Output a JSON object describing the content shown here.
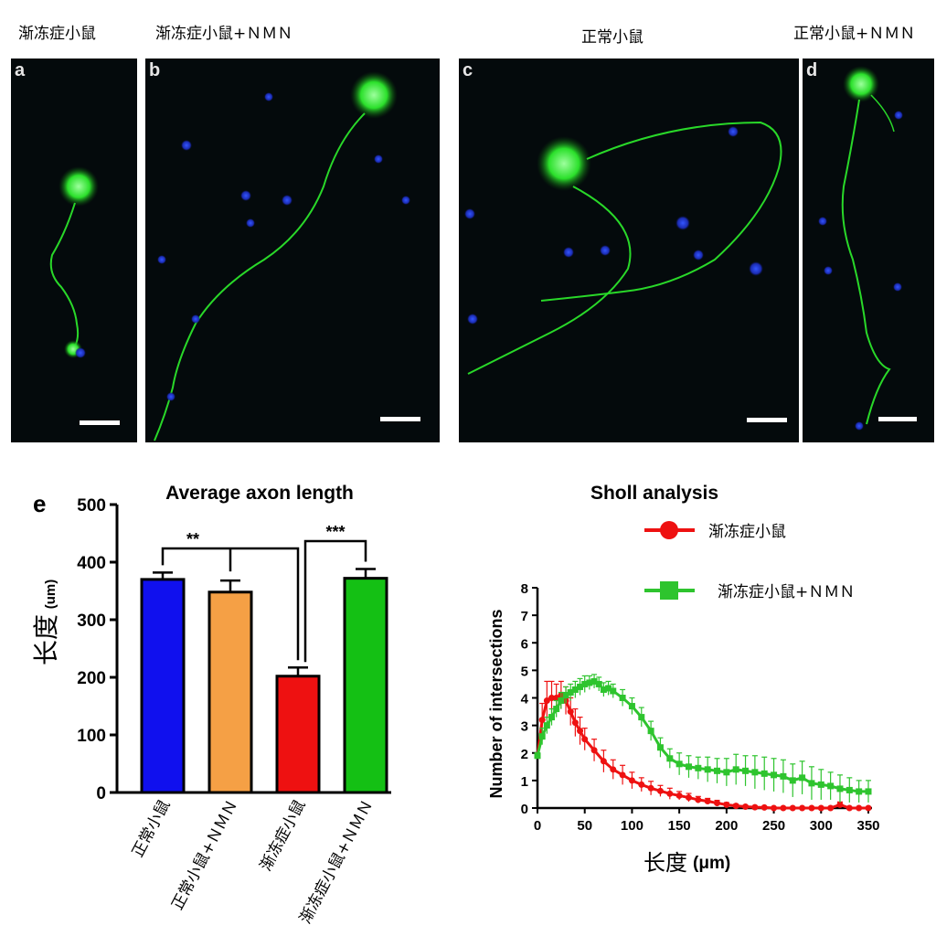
{
  "micrographs": [
    {
      "letter": "a",
      "caption": "渐冻症小鼠"
    },
    {
      "letter": "b",
      "caption": "渐冻症小鼠+ＮＭＮ"
    },
    {
      "letter": "c",
      "caption": "正常小鼠"
    },
    {
      "letter": "d",
      "caption": "正常小鼠+ＮＭＮ"
    }
  ],
  "chart_data": [
    {
      "panel_letter": "e",
      "type": "bar",
      "title": "Average axon length",
      "ylabel": "长度",
      "ylabel_unit": "(um)",
      "ylim": [
        0,
        500
      ],
      "yticks": [
        0,
        100,
        200,
        300,
        400,
        500
      ],
      "categories": [
        "正常小鼠",
        "正常小鼠+ＮＭＮ",
        "渐冻症小鼠",
        "渐冻症小鼠+ＮＭＮ"
      ],
      "values": [
        370,
        348,
        202,
        372
      ],
      "errors": [
        12,
        20,
        15,
        16
      ],
      "colors": [
        "#1010ee",
        "#f5a045",
        "#ee1111",
        "#14c014"
      ],
      "significance": [
        {
          "from": 0,
          "to": 2,
          "label": "**"
        },
        {
          "from": 2,
          "to": 3,
          "label": "***"
        }
      ]
    },
    {
      "type": "line",
      "title": "Sholl analysis",
      "xlabel": "长度",
      "xlabel_unit": "(μm)",
      "ylabel": "Number of intersections",
      "xlim": [
        0,
        350
      ],
      "ylim": [
        0,
        8
      ],
      "xticks": [
        0,
        50,
        100,
        150,
        200,
        250,
        300,
        350
      ],
      "yticks": [
        0,
        1,
        2,
        3,
        4,
        5,
        6,
        7,
        8
      ],
      "grid": false,
      "legend_position": "top-right",
      "series": [
        {
          "name": "渐冻症小鼠",
          "color": "#ee1111",
          "marker": "circle",
          "x": [
            0,
            5,
            10,
            15,
            20,
            25,
            30,
            35,
            40,
            45,
            50,
            60,
            70,
            80,
            90,
            100,
            110,
            120,
            130,
            140,
            150,
            160,
            170,
            180,
            190,
            200,
            210,
            220,
            230,
            240,
            250,
            260,
            270,
            280,
            290,
            300,
            310,
            320,
            330,
            340,
            350
          ],
          "y": [
            1.9,
            3.2,
            3.9,
            4.0,
            4.0,
            4.1,
            3.9,
            3.5,
            3.1,
            2.8,
            2.5,
            2.1,
            1.7,
            1.4,
            1.2,
            1.0,
            0.85,
            0.72,
            0.62,
            0.52,
            0.45,
            0.38,
            0.3,
            0.25,
            0.18,
            0.12,
            0.08,
            0.05,
            0.03,
            0.02,
            0.0,
            0.0,
            0.0,
            0.0,
            0.0,
            0.0,
            0.0,
            0.12,
            0.0,
            0.0,
            0.0
          ],
          "err": [
            0.1,
            0.6,
            0.7,
            0.6,
            0.5,
            0.5,
            0.5,
            0.5,
            0.5,
            0.5,
            0.4,
            0.4,
            0.4,
            0.35,
            0.35,
            0.3,
            0.25,
            0.25,
            0.2,
            0.2,
            0.15,
            0.15,
            0.12,
            0.1,
            0.1,
            0.08,
            0.06,
            0.05,
            0.04,
            0.03,
            0.02,
            0.02,
            0.02,
            0.02,
            0.02,
            0.02,
            0.02,
            0.1,
            0.02,
            0.02,
            0.02
          ]
        },
        {
          "name": "渐冻症小鼠+ＮＭＮ",
          "color": "#2ec42e",
          "marker": "square",
          "x": [
            0,
            5,
            10,
            15,
            20,
            25,
            30,
            35,
            40,
            45,
            50,
            55,
            60,
            65,
            70,
            75,
            80,
            90,
            100,
            110,
            120,
            130,
            140,
            150,
            160,
            170,
            180,
            190,
            200,
            210,
            220,
            230,
            240,
            250,
            260,
            270,
            280,
            290,
            300,
            310,
            320,
            330,
            340,
            350
          ],
          "y": [
            1.9,
            2.6,
            3.0,
            3.3,
            3.6,
            3.9,
            4.1,
            4.2,
            4.3,
            4.4,
            4.5,
            4.55,
            4.6,
            4.5,
            4.3,
            4.35,
            4.25,
            4.0,
            3.7,
            3.3,
            2.8,
            2.2,
            1.8,
            1.6,
            1.5,
            1.45,
            1.4,
            1.35,
            1.3,
            1.4,
            1.35,
            1.3,
            1.25,
            1.2,
            1.15,
            1.0,
            1.1,
            0.9,
            0.85,
            0.8,
            0.7,
            0.65,
            0.6,
            0.6
          ],
          "err": [
            0.1,
            0.3,
            0.3,
            0.3,
            0.3,
            0.3,
            0.3,
            0.3,
            0.3,
            0.3,
            0.3,
            0.25,
            0.25,
            0.25,
            0.25,
            0.25,
            0.25,
            0.3,
            0.3,
            0.35,
            0.35,
            0.35,
            0.35,
            0.4,
            0.4,
            0.4,
            0.45,
            0.45,
            0.5,
            0.55,
            0.55,
            0.6,
            0.6,
            0.6,
            0.6,
            0.6,
            0.6,
            0.6,
            0.55,
            0.5,
            0.5,
            0.45,
            0.4,
            0.4
          ]
        }
      ]
    }
  ]
}
